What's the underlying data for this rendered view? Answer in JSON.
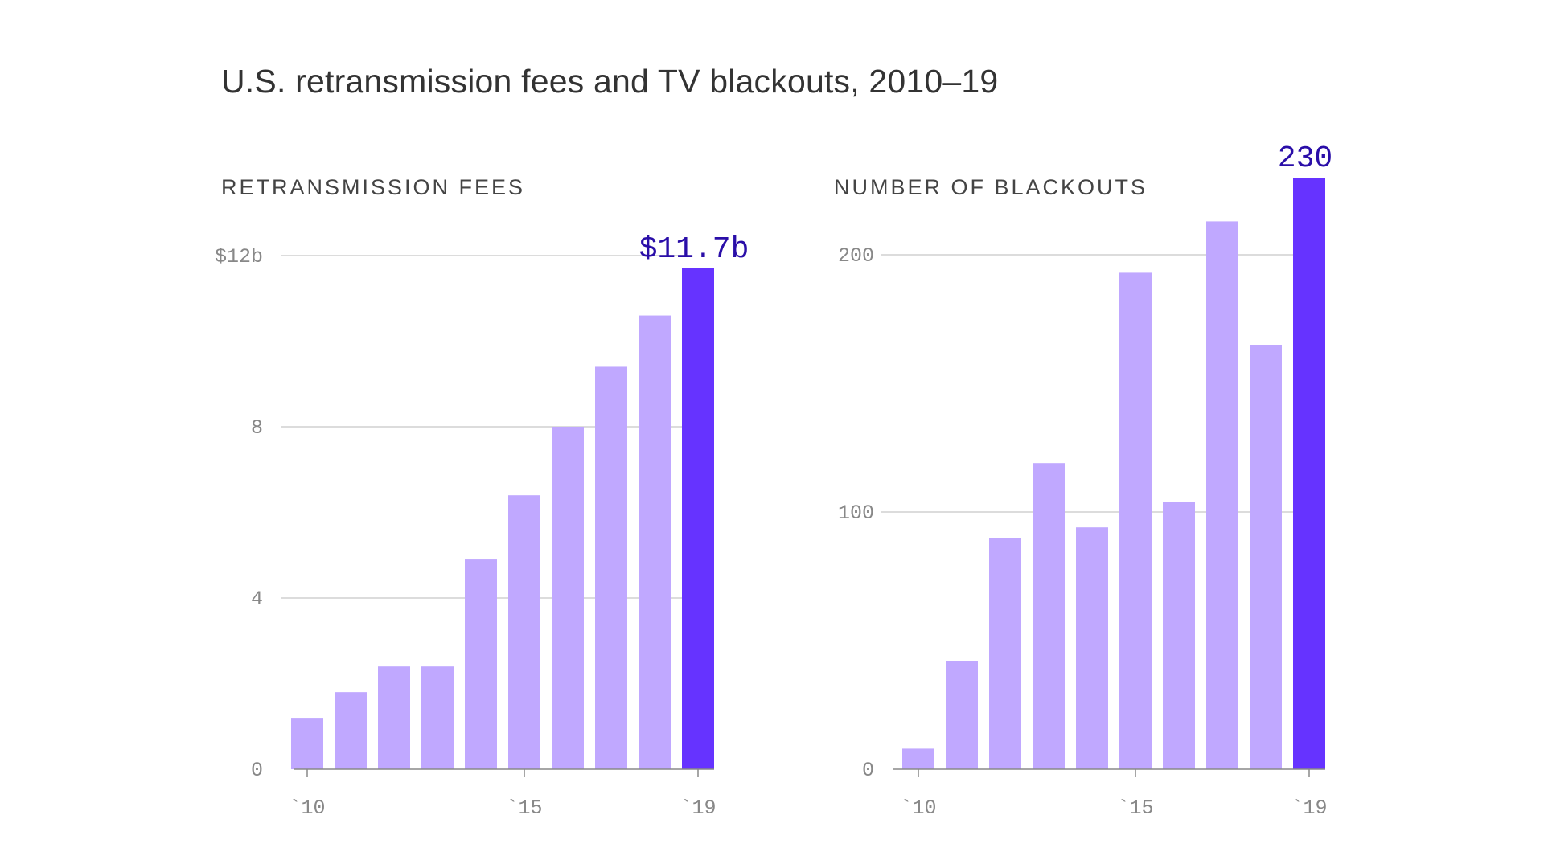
{
  "title": "U.S. retransmission fees and TV blackouts, 2010–19",
  "colors": {
    "bar": "#c0a8ff",
    "highlight": "#6633ff",
    "callout_text": "#2a0ea8",
    "grid": "#d0d0d0",
    "axis": "#888888"
  },
  "chart_data": [
    {
      "type": "bar",
      "title": "RETRANSMISSION FEES",
      "categories": [
        "2010",
        "2011",
        "2012",
        "2013",
        "2014",
        "2015",
        "2016",
        "2017",
        "2018",
        "2019"
      ],
      "x_tick_labels": [
        {
          "category": "2010",
          "label": "`10"
        },
        {
          "category": "2015",
          "label": "`15"
        },
        {
          "category": "2019",
          "label": "`19"
        }
      ],
      "values": [
        1.2,
        1.8,
        2.4,
        2.4,
        4.9,
        6.4,
        8.0,
        9.4,
        10.6,
        11.7
      ],
      "y_ticks": [
        {
          "value": 0,
          "label": "0"
        },
        {
          "value": 4,
          "label": "4"
        },
        {
          "value": 8,
          "label": "8"
        },
        {
          "value": 12,
          "label": "$12b"
        }
      ],
      "ylim": [
        0,
        12
      ],
      "highlight_category": "2019",
      "callout": "$11.7b",
      "grid": true
    },
    {
      "type": "bar",
      "title": "NUMBER OF BLACKOUTS",
      "categories": [
        "2010",
        "2011",
        "2012",
        "2013",
        "2014",
        "2015",
        "2016",
        "2017",
        "2018",
        "2019"
      ],
      "x_tick_labels": [
        {
          "category": "2010",
          "label": "`10"
        },
        {
          "category": "2015",
          "label": "`15"
        },
        {
          "category": "2019",
          "label": "`19"
        }
      ],
      "values": [
        8,
        42,
        90,
        119,
        94,
        193,
        104,
        213,
        165,
        230
      ],
      "y_ticks": [
        {
          "value": 0,
          "label": "0"
        },
        {
          "value": 100,
          "label": "100"
        },
        {
          "value": 200,
          "label": "200"
        }
      ],
      "ylim": [
        0,
        230
      ],
      "highlight_category": "2019",
      "callout": "230",
      "grid": true
    }
  ]
}
